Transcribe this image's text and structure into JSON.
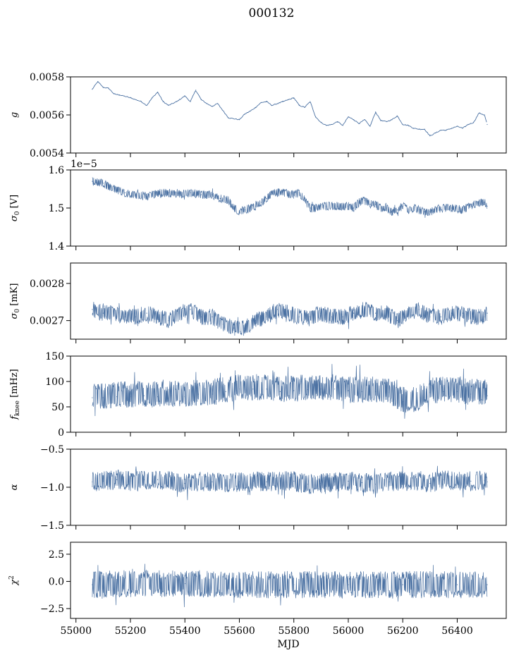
{
  "figure": {
    "title": "000132"
  },
  "chart_data": [
    {
      "type": "line",
      "ylabel": "g",
      "ylabel_kind": "math",
      "xlim": [
        54980,
        56580
      ],
      "ylim": [
        0.0054,
        0.0058
      ],
      "yticks": [
        0.0054,
        0.0056,
        0.0058
      ],
      "ytick_labels": [
        "0.0054",
        "0.0056",
        "0.0058"
      ],
      "offset_text": "",
      "color": "#4c72a3",
      "band": [],
      "series": [
        {
          "x": [
            55060,
            55080,
            55100,
            55120,
            55140,
            55160,
            55200,
            55240,
            55260,
            55280,
            55300,
            55320,
            55340,
            55370,
            55400,
            55420,
            55440,
            55460,
            55480,
            55500,
            55520,
            55560,
            55600,
            55620,
            55640,
            55660,
            55680,
            55700,
            55720,
            55740,
            55760,
            55780,
            55800,
            55820,
            55840,
            55860,
            55880,
            55900,
            55920,
            55940,
            55960,
            55980,
            56000,
            56020,
            56040,
            56060,
            56080,
            56100,
            56120,
            56140,
            56160,
            56180,
            56200,
            56220,
            56240,
            56260,
            56280,
            56300,
            56320,
            56340,
            56360,
            56380,
            56400,
            56420,
            56440,
            56460,
            56480,
            56500,
            56510
          ],
          "y": [
            0.005735,
            0.005775,
            0.005745,
            0.00574,
            0.00571,
            0.005705,
            0.00569,
            0.00567,
            0.00565,
            0.00569,
            0.00572,
            0.00567,
            0.00565,
            0.00567,
            0.0057,
            0.00567,
            0.00573,
            0.00568,
            0.00566,
            0.005645,
            0.00566,
            0.005585,
            0.005575,
            0.005605,
            0.00562,
            0.00564,
            0.005665,
            0.00567,
            0.00565,
            0.00566,
            0.00567,
            0.00568,
            0.00569,
            0.00565,
            0.00564,
            0.00567,
            0.00559,
            0.00556,
            0.005545,
            0.00555,
            0.005565,
            0.005545,
            0.00559,
            0.005575,
            0.005555,
            0.005575,
            0.00554,
            0.005615,
            0.00557,
            0.005565,
            0.005575,
            0.005595,
            0.00555,
            0.005545,
            0.00553,
            0.005525,
            0.005525,
            0.00549,
            0.005505,
            0.00552,
            0.00552,
            0.00553,
            0.00554,
            0.00553,
            0.00555,
            0.00556,
            0.00561,
            0.0056,
            0.00555
          ]
        }
      ]
    },
    {
      "type": "line",
      "ylabel": "σ₀ [V]",
      "ylabel_kind": "sigma",
      "ylabel_unit": "[V]",
      "xlim": [
        54980,
        56580
      ],
      "ylim": [
        1.4,
        1.6
      ],
      "yticks": [
        1.4,
        1.5,
        1.6
      ],
      "ytick_labels": [
        "1.4",
        "1.5",
        "1.6"
      ],
      "offset_text": "1e−5",
      "color": "#4c72a3",
      "band": [
        0.011,
        0.011
      ],
      "series": [
        {
          "x": [
            55060,
            55100,
            55140,
            55180,
            55220,
            55260,
            55300,
            55340,
            55380,
            55420,
            55460,
            55500,
            55530,
            55560,
            55580,
            55600,
            55620,
            55640,
            55660,
            55680,
            55700,
            55720,
            55760,
            55800,
            55820,
            55840,
            55860,
            55880,
            55920,
            55960,
            56000,
            56020,
            56040,
            56060,
            56080,
            56100,
            56120,
            56140,
            56160,
            56180,
            56200,
            56220,
            56240,
            56260,
            56280,
            56300,
            56340,
            56380,
            56420,
            56460,
            56500,
            56510
          ],
          "y": [
            1.57,
            1.565,
            1.55,
            1.54,
            1.535,
            1.53,
            1.54,
            1.54,
            1.535,
            1.54,
            1.535,
            1.535,
            1.525,
            1.52,
            1.5,
            1.49,
            1.495,
            1.5,
            1.505,
            1.515,
            1.525,
            1.54,
            1.54,
            1.535,
            1.54,
            1.52,
            1.5,
            1.5,
            1.505,
            1.505,
            1.505,
            1.5,
            1.515,
            1.52,
            1.51,
            1.51,
            1.5,
            1.5,
            1.49,
            1.495,
            1.505,
            1.495,
            1.5,
            1.495,
            1.49,
            1.49,
            1.5,
            1.5,
            1.495,
            1.51,
            1.515,
            1.505
          ]
        }
      ]
    },
    {
      "type": "line",
      "ylabel": "σ₀ [mK]",
      "ylabel_kind": "sigma",
      "ylabel_unit": "[mK]",
      "xlim": [
        54980,
        56580
      ],
      "ylim": [
        0.00265,
        0.002855
      ],
      "yticks": [
        0.0027,
        0.0028
      ],
      "ytick_labels": [
        "0.0027",
        "0.0028"
      ],
      "offset_text": "",
      "color": "#4c72a3",
      "band": [
        2.2e-05,
        2.2e-05
      ],
      "series": [
        {
          "x": [
            55060,
            55100,
            55140,
            55180,
            55220,
            55260,
            55300,
            55340,
            55380,
            55420,
            55460,
            55500,
            55540,
            55580,
            55620,
            55660,
            55700,
            55740,
            55780,
            55820,
            55860,
            55900,
            55940,
            55980,
            56020,
            56060,
            56100,
            56140,
            56180,
            56220,
            56260,
            56300,
            56340,
            56380,
            56420,
            56460,
            56500,
            56510
          ],
          "y": [
            0.00273,
            0.00272,
            0.00272,
            0.00271,
            0.00271,
            0.00272,
            0.00271,
            0.0027,
            0.00272,
            0.00273,
            0.00271,
            0.00271,
            0.00269,
            0.00268,
            0.00268,
            0.0027,
            0.00271,
            0.00273,
            0.00272,
            0.00271,
            0.00271,
            0.00272,
            0.00271,
            0.00271,
            0.00272,
            0.00273,
            0.00272,
            0.00272,
            0.0027,
            0.00272,
            0.00273,
            0.00271,
            0.00271,
            0.00272,
            0.00272,
            0.00271,
            0.00271,
            0.00272
          ]
        }
      ]
    },
    {
      "type": "line",
      "ylabel": "f_knee [mHz]",
      "ylabel_kind": "fknee",
      "ylabel_unit": "[mHz]",
      "xlim": [
        54980,
        56580
      ],
      "ylim": [
        0,
        150
      ],
      "yticks": [
        0,
        50,
        100,
        150
      ],
      "ytick_labels": [
        "0",
        "50",
        "100",
        "150"
      ],
      "offset_text": "",
      "color": "#4c72a3",
      "band": [
        22,
        30
      ],
      "series": [
        {
          "x": [
            55060,
            55100,
            55150,
            55200,
            55250,
            55300,
            55350,
            55400,
            55450,
            55500,
            55550,
            55600,
            55650,
            55700,
            55750,
            55800,
            55850,
            55900,
            55950,
            56000,
            56050,
            56100,
            56150,
            56200,
            56250,
            56300,
            56350,
            56400,
            56450,
            56500,
            56510
          ],
          "y": [
            68,
            68,
            70,
            70,
            72,
            70,
            72,
            70,
            75,
            75,
            80,
            85,
            85,
            85,
            80,
            82,
            84,
            85,
            85,
            82,
            80,
            80,
            78,
            60,
            62,
            78,
            80,
            80,
            75,
            75,
            72
          ]
        }
      ]
    },
    {
      "type": "line",
      "ylabel": "α",
      "ylabel_kind": "math",
      "xlim": [
        54980,
        56580
      ],
      "ylim": [
        -1.5,
        -0.5
      ],
      "yticks": [
        -1.5,
        -1.0,
        -0.5
      ],
      "ytick_labels": [
        "−1.5",
        "−1.0",
        "−0.5"
      ],
      "offset_text": "",
      "color": "#4c72a3",
      "band": [
        0.13,
        0.13
      ],
      "series": [
        {
          "x": [
            55060,
            55100,
            55150,
            55200,
            55250,
            55300,
            55350,
            55400,
            55450,
            55500,
            55550,
            55600,
            55650,
            55700,
            55750,
            55800,
            55850,
            55900,
            55950,
            56000,
            56050,
            56100,
            56150,
            56200,
            56250,
            56300,
            56350,
            56400,
            56450,
            56500,
            56510
          ],
          "y": [
            -0.93,
            -0.92,
            -0.9,
            -0.92,
            -0.9,
            -0.9,
            -0.92,
            -0.95,
            -0.93,
            -0.93,
            -0.94,
            -0.93,
            -0.92,
            -0.93,
            -0.92,
            -0.92,
            -0.96,
            -0.95,
            -0.93,
            -0.92,
            -0.94,
            -0.96,
            -0.93,
            -0.92,
            -0.93,
            -0.95,
            -0.9,
            -0.91,
            -0.92,
            -0.91,
            -0.93
          ]
        }
      ]
    },
    {
      "type": "line",
      "ylabel": "χ²",
      "ylabel_kind": "math",
      "xlabel": "MJD",
      "xlim": [
        54980,
        56580
      ],
      "xticks": [
        55000,
        55200,
        55400,
        55600,
        55800,
        56000,
        56200,
        56400
      ],
      "xtick_labels": [
        "55000",
        "55200",
        "55400",
        "55600",
        "55800",
        "56000",
        "56200",
        "56400"
      ],
      "ylim": [
        -3.4,
        3.6
      ],
      "yticks": [
        -2.5,
        0.0,
        2.5
      ],
      "ytick_labels": [
        "−2.5",
        "0.0",
        "2.5"
      ],
      "offset_text": "",
      "color": "#4c72a3",
      "band": [
        1.25,
        1.25
      ],
      "series": [
        {
          "x": [
            55060,
            55200,
            55400,
            55600,
            55800,
            56000,
            56200,
            56400,
            56510
          ],
          "y": [
            -0.3,
            -0.2,
            -0.2,
            -0.3,
            -0.3,
            -0.3,
            -0.3,
            -0.3,
            -0.3
          ]
        }
      ]
    }
  ]
}
